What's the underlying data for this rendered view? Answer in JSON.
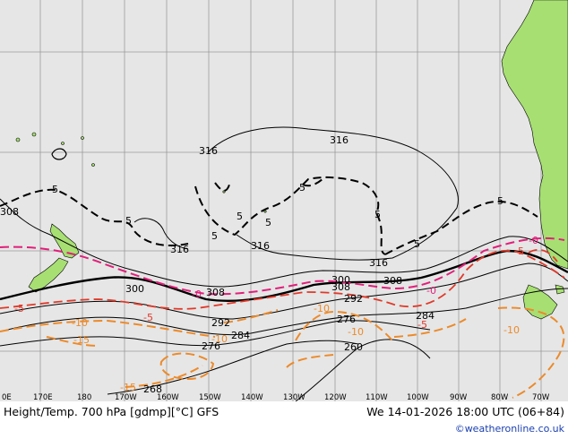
{
  "map": {
    "title": "Height/Temp. 700 hPa [gdmp][°C] GFS",
    "datetime": "We 14-01-2026 18:00 UTC (06+84)",
    "credit": "©weatheronline.co.uk",
    "lon_labels": [
      "0E",
      "170E",
      "180",
      "170W",
      "160W",
      "150W",
      "140W",
      "130W",
      "120W",
      "110W",
      "100W",
      "90W",
      "80W",
      "70W"
    ],
    "height_labels": [
      "316",
      "316",
      "316",
      "316",
      "316",
      "308",
      "308",
      "308",
      "308",
      "300",
      "300",
      "292",
      "292",
      "284",
      "284",
      "276",
      "276",
      "268",
      "260"
    ],
    "temp_labels": [
      "-5",
      "5",
      "5",
      "5",
      "5",
      "5",
      "5",
      "5",
      "5",
      "-5",
      "-5",
      "-5",
      "-5",
      "-10",
      "-10",
      "-10",
      "-10",
      "-10",
      "-15",
      "-15",
      "-0",
      "-0",
      "-0"
    ],
    "colors": {
      "ocean": "#e6e6e6",
      "land": "#a7df73",
      "grid": "#9a9a9a",
      "height_contour": "#000000",
      "temp_zero": "#e0207a",
      "temp_neg5": "#e03a2a",
      "temp_neg10": "#ec8a2a",
      "temp_pos5": "#000000",
      "credit": "#1a3fb0"
    }
  }
}
